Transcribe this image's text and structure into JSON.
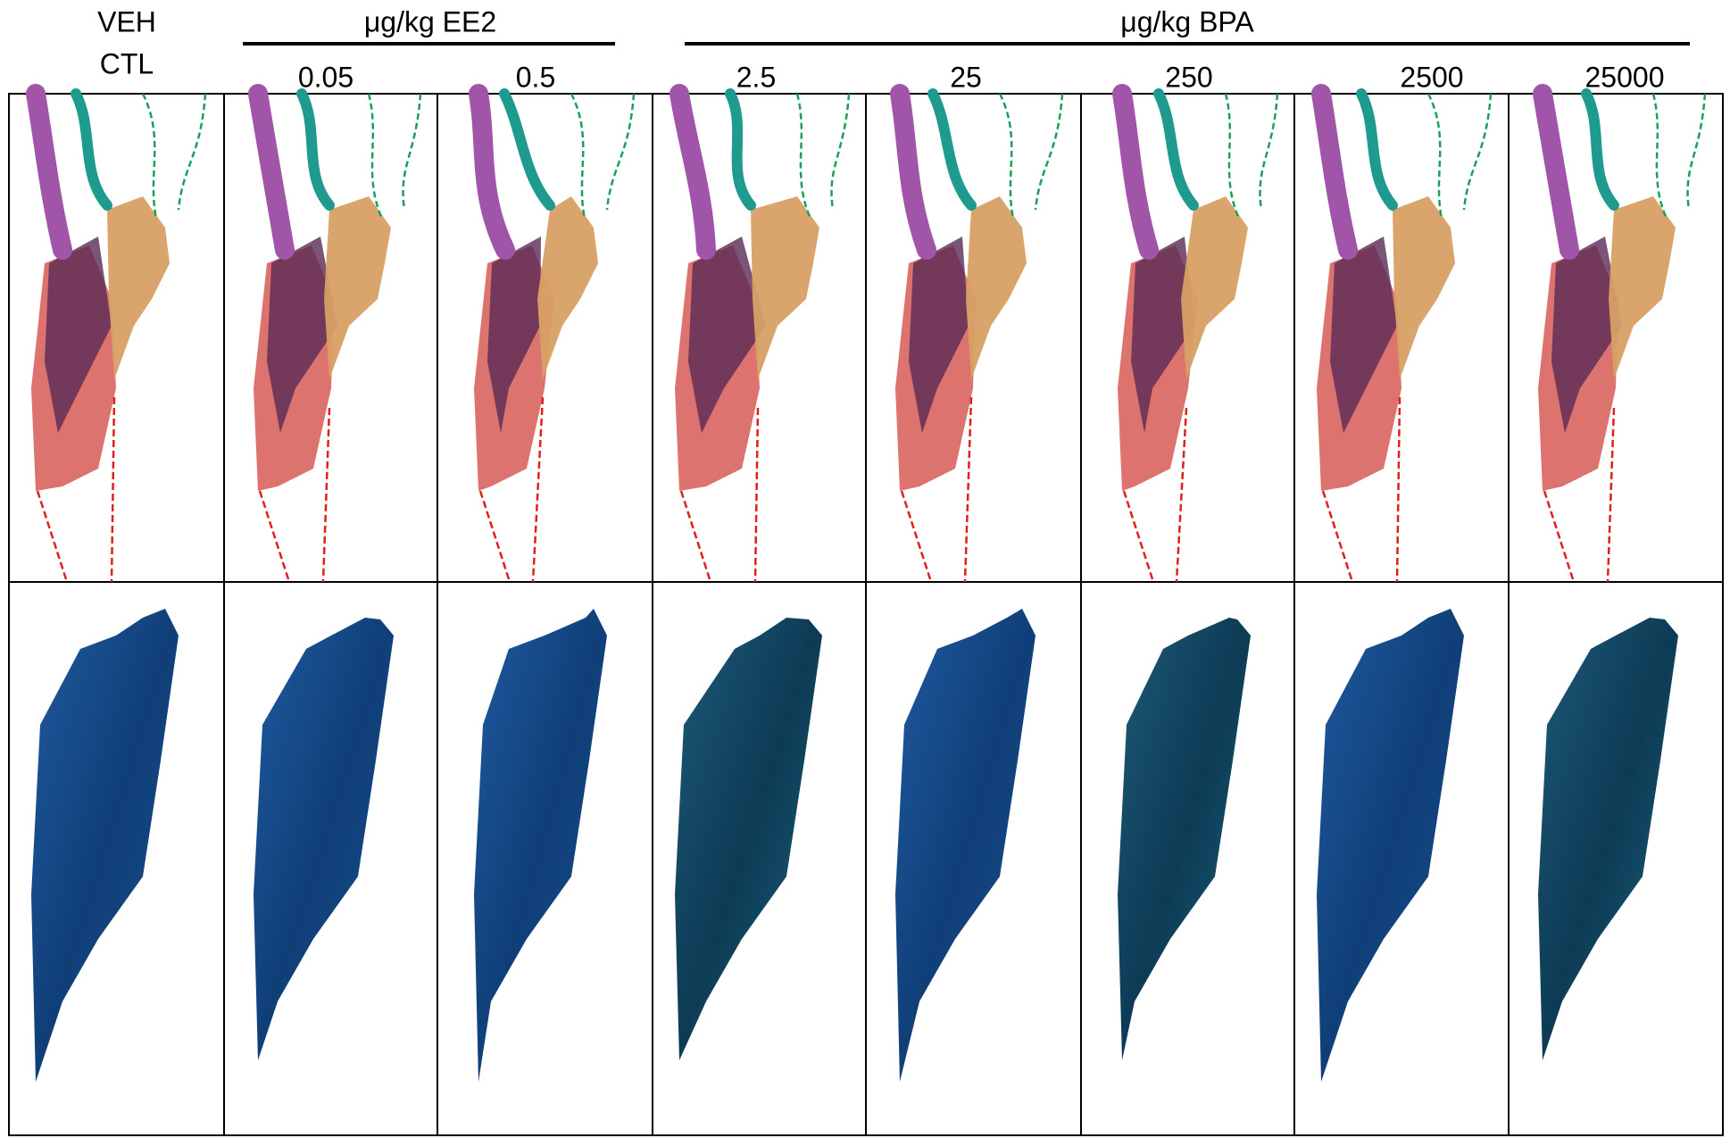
{
  "header": {
    "control": [
      "VEH",
      "CTL"
    ],
    "groups": [
      {
        "label": "μg/kg EE2"
      },
      {
        "label": "μg/kg BPA"
      }
    ],
    "columns": [
      "0.05",
      "0.5",
      "2.5",
      "25",
      "250",
      "2500",
      "25000"
    ]
  }
}
